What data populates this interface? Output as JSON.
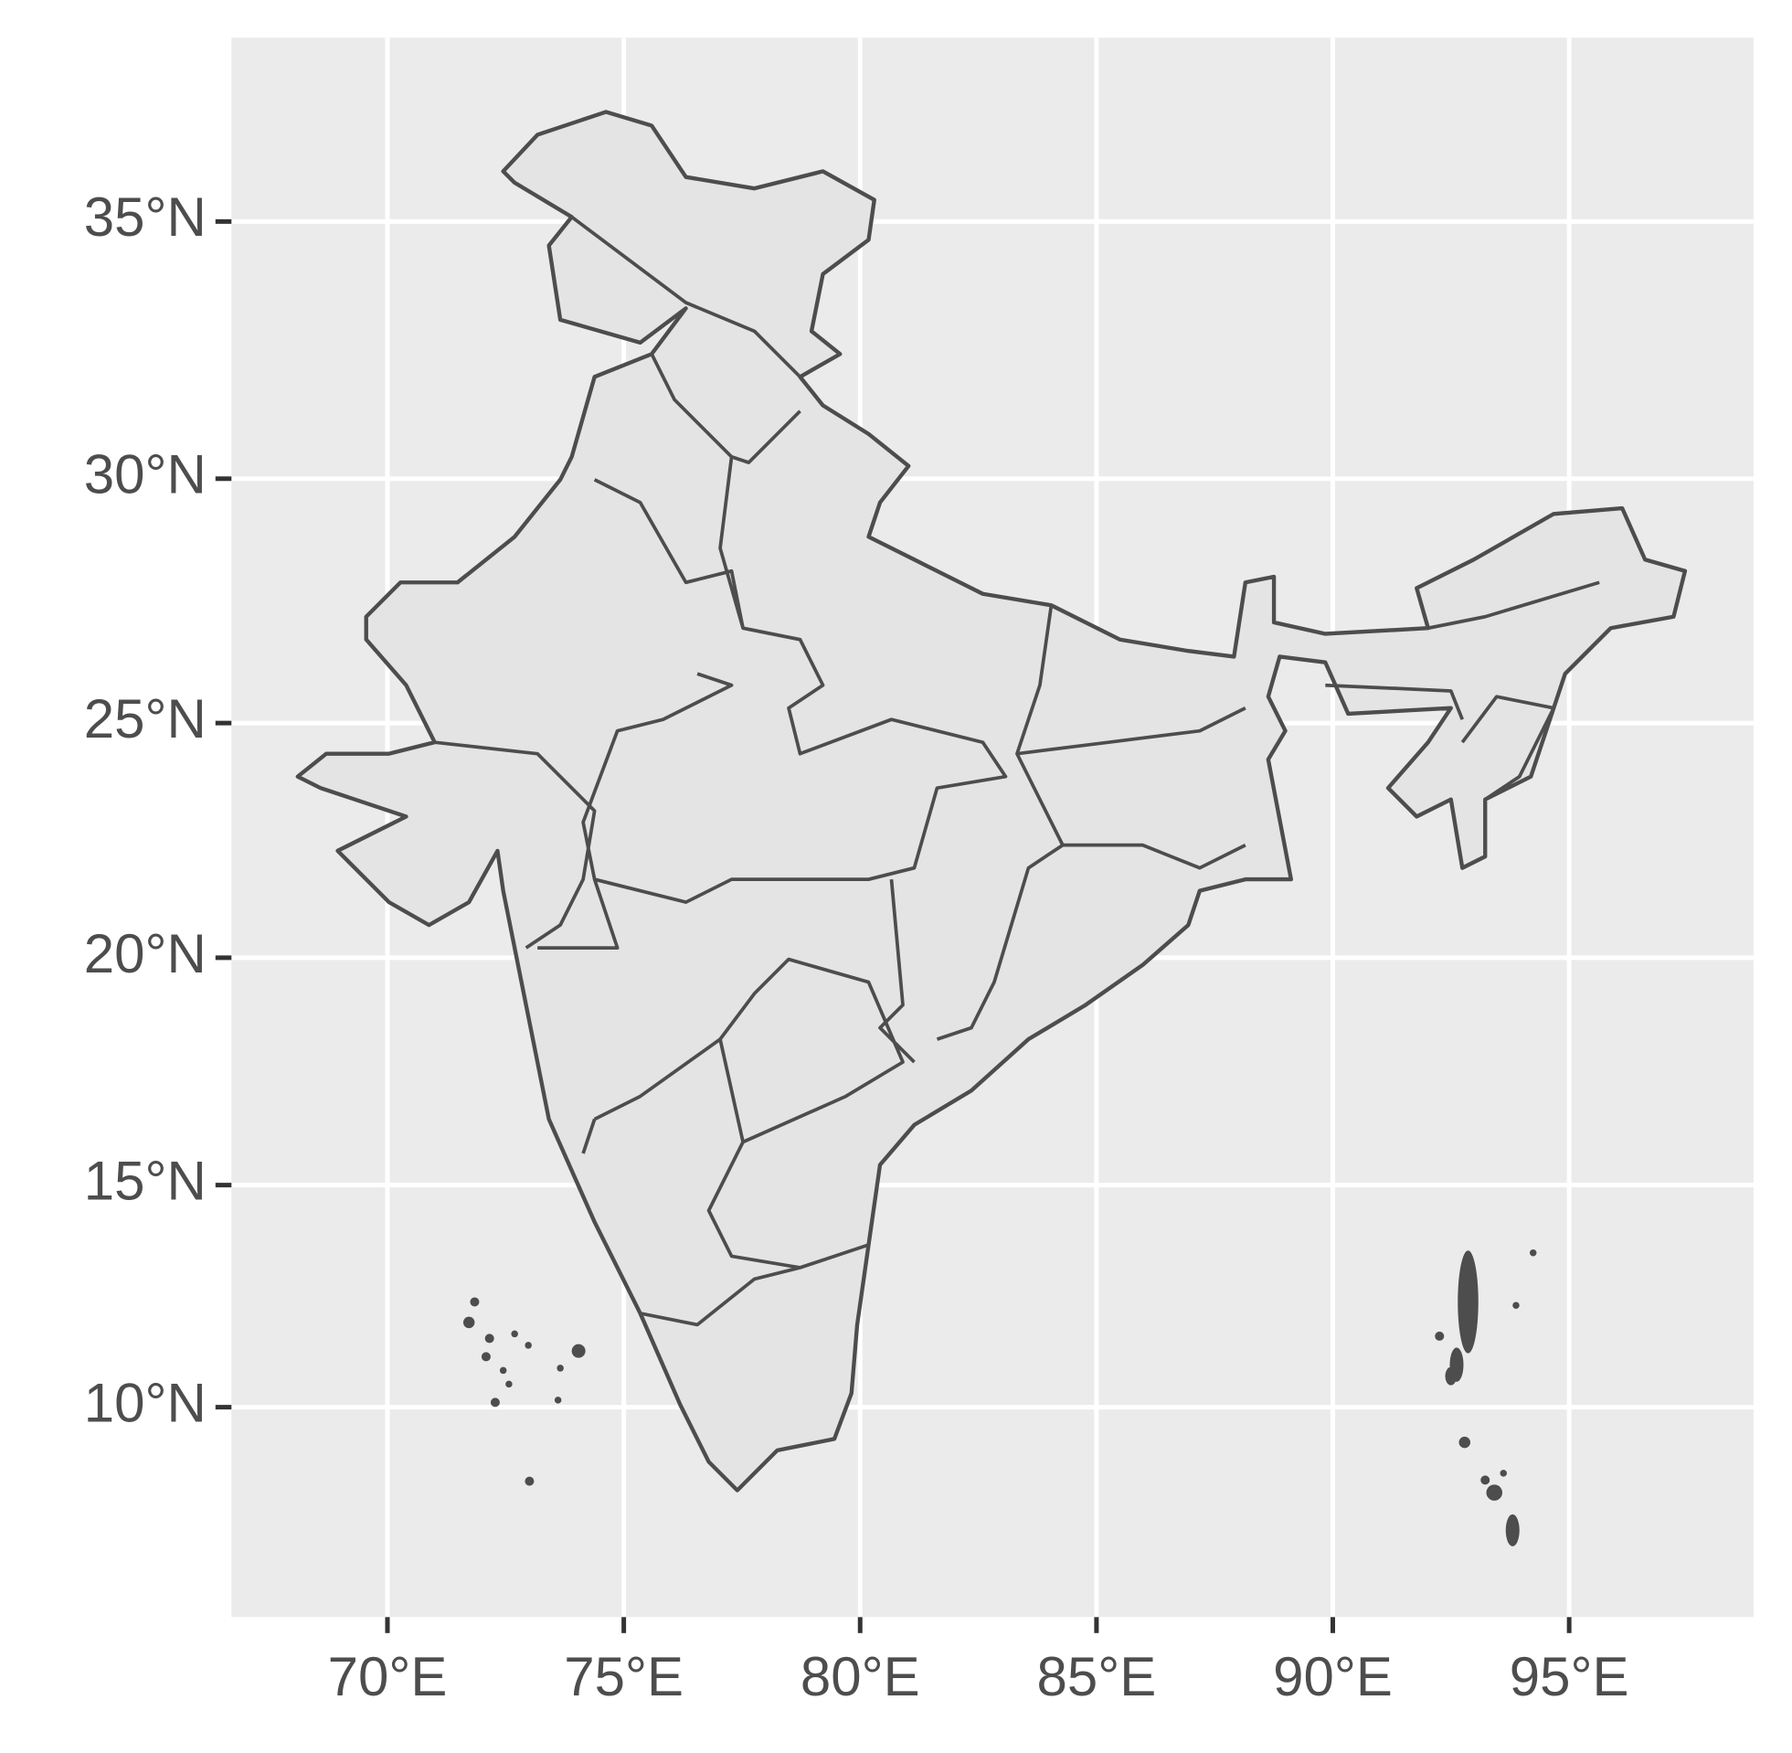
{
  "chart_data": {
    "type": "map",
    "projection": "mercator",
    "xlim": [
      66.7,
      98.9
    ],
    "ylim": [
      5.2,
      38.4
    ],
    "xticks": [
      {
        "value": 70,
        "label": "70°E"
      },
      {
        "value": 75,
        "label": "75°E"
      },
      {
        "value": 80,
        "label": "80°E"
      },
      {
        "value": 85,
        "label": "85°E"
      },
      {
        "value": 90,
        "label": "90°E"
      },
      {
        "value": 95,
        "label": "95°E"
      }
    ],
    "yticks": [
      {
        "value": 10,
        "label": "10°N"
      },
      {
        "value": 15,
        "label": "15°N"
      },
      {
        "value": 20,
        "label": "20°N"
      },
      {
        "value": 25,
        "label": "25°N"
      },
      {
        "value": 30,
        "label": "30°N"
      },
      {
        "value": 35,
        "label": "35°N"
      }
    ],
    "grid": true
  }
}
